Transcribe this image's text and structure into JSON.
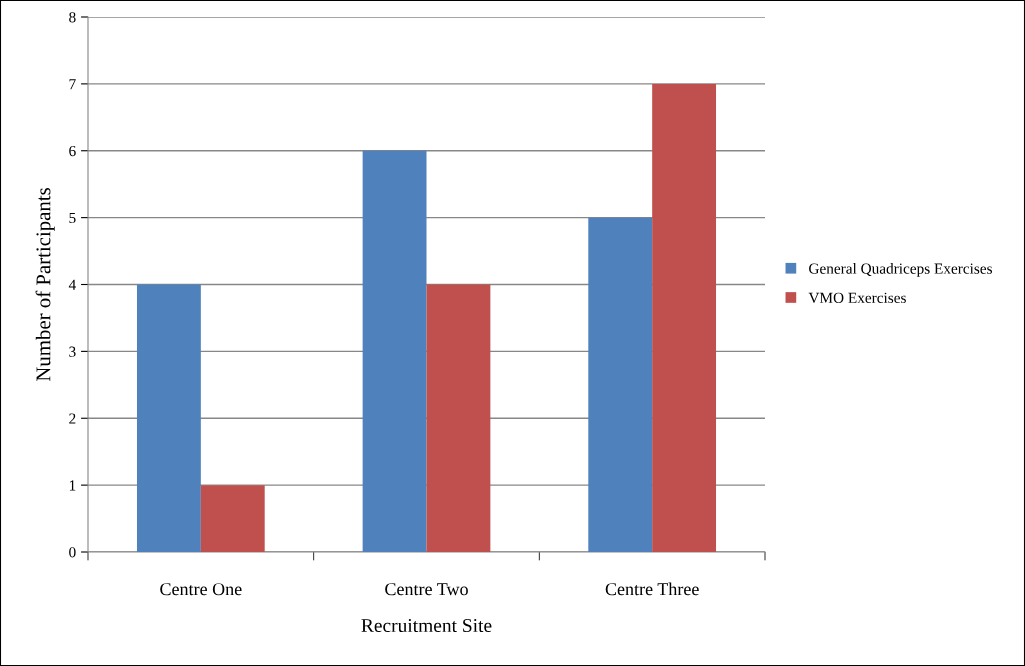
{
  "chart_data": {
    "type": "bar",
    "xlabel": "Recruitment Site",
    "ylabel": "Number of Participants",
    "categories": [
      "Centre One",
      "Centre Two",
      "Centre Three"
    ],
    "series": [
      {
        "name": "General Quadriceps Exercises",
        "color": "#4f81bd",
        "values": [
          4,
          6,
          5
        ]
      },
      {
        "name": "VMO Exercises",
        "color": "#c0504d",
        "values": [
          1,
          4,
          7
        ]
      }
    ],
    "ylim": [
      0,
      8
    ],
    "yticks": [
      0,
      1,
      2,
      3,
      4,
      5,
      6,
      7,
      8
    ],
    "grid": "y",
    "legend": "right"
  }
}
